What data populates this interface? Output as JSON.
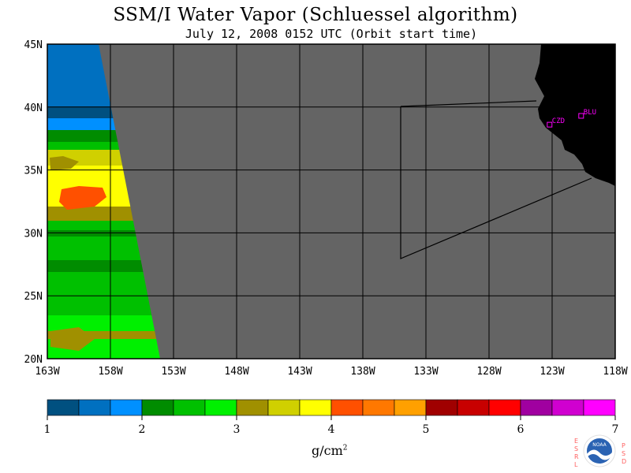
{
  "title": "SSM/I Water Vapor (Schluessel algorithm)",
  "subtitle": "July 12, 2008  0152 UTC  (Orbit start time)",
  "map": {
    "lat_labels": [
      "45N",
      "40N",
      "35N",
      "30N",
      "25N",
      "20N"
    ],
    "lon_labels": [
      "163W",
      "158W",
      "153W",
      "148W",
      "143W",
      "138W",
      "133W",
      "128W",
      "123W",
      "118W"
    ],
    "lat_range": [
      20,
      45
    ],
    "lon_range": [
      -163,
      -118
    ],
    "stations": [
      {
        "label": "CZD",
        "lat": 38.6,
        "lon": -123.2
      },
      {
        "label": "BLU",
        "lat": 39.3,
        "lon": -120.7
      }
    ],
    "colors": {
      "land": "#000000",
      "no_data": "#646464",
      "grid": "#000000",
      "station": "#ff00ff"
    }
  },
  "colorbar": {
    "ticks": [
      "1",
      "2",
      "3",
      "4",
      "5",
      "6",
      "7"
    ],
    "units_main": "g/cm",
    "units_sup": "2",
    "colors": [
      "#005080",
      "#0070c0",
      "#0090ff",
      "#008c00",
      "#00c000",
      "#00f000",
      "#a09000",
      "#d0d000",
      "#ffff00",
      "#ff5000",
      "#ff7800",
      "#ffa000",
      "#a00000",
      "#c80000",
      "#ff0000",
      "#a000a0",
      "#d000d0",
      "#ff00ff"
    ]
  },
  "logo": {
    "left_letters": [
      "E",
      "S",
      "R",
      "L"
    ],
    "right_letters": [
      "P",
      "S",
      "D"
    ],
    "badge": "NOAA"
  }
}
